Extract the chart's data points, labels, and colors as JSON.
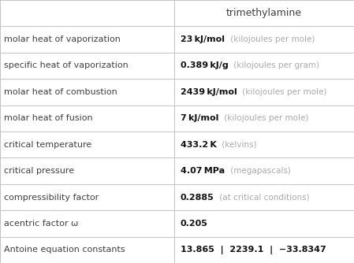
{
  "title": "trimethylamine",
  "rows": [
    {
      "label": "molar heat of vaporization",
      "value_bold": "23 kJ/mol",
      "value_light": " (kilojoules per mole)"
    },
    {
      "label": "specific heat of vaporization",
      "value_bold": "0.389 kJ/g",
      "value_light": " (kilojoules per gram)"
    },
    {
      "label": "molar heat of combustion",
      "value_bold": "2439 kJ/mol",
      "value_light": " (kilojoules per mole)"
    },
    {
      "label": "molar heat of fusion",
      "value_bold": "7 kJ/mol",
      "value_light": " (kilojoules per mole)"
    },
    {
      "label": "critical temperature",
      "value_bold": "433.2 K",
      "value_light": " (kelvins)"
    },
    {
      "label": "critical pressure",
      "value_bold": "4.07 MPa",
      "value_light": " (megapascals)"
    },
    {
      "label": "compressibility factor",
      "value_bold": "0.2885",
      "value_light": " (at critical conditions)"
    },
    {
      "label": "acentric factor ω",
      "value_bold": "0.205",
      "value_light": ""
    },
    {
      "label": "Antoine equation constants",
      "value_bold": "13.865  |  2239.1  |  −33.8347",
      "value_light": ""
    }
  ],
  "col_split": 0.492,
  "bg_color": "#ffffff",
  "header_text_color": "#404040",
  "label_text_color": "#404040",
  "value_bold_color": "#111111",
  "value_light_color": "#aaaaaa",
  "grid_color": "#bbbbbb",
  "label_fontsize": 8.0,
  "value_bold_fontsize": 8.0,
  "value_light_fontsize": 7.5,
  "header_fontsize": 9.0
}
